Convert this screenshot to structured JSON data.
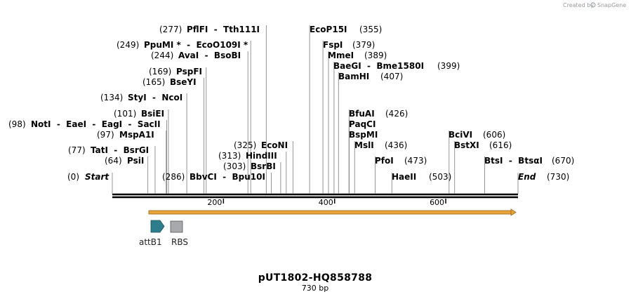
{
  "watermark": "Created by",
  "brand": "SnapGene",
  "title": "pUT1802-HQ858788",
  "length_label": "730 bp",
  "map": {
    "start_bp": 0,
    "end_bp": 730,
    "ticks": [
      200,
      400,
      600
    ]
  },
  "colors": {
    "feature_arrow": "#e8a33a",
    "attB1": "#2e7d8c",
    "RBS": "#a7a9ac"
  },
  "sites": [
    {
      "label": "Start",
      "pos": "(0)",
      "bp": 0,
      "italic": true
    },
    {
      "label": "PsiI",
      "pos": "(64)",
      "bp": 64
    },
    {
      "label": "TatI  -  BsrGI",
      "pos": "(77)",
      "bp": 77
    },
    {
      "label": "MspA1I",
      "pos": "(97)",
      "bp": 97
    },
    {
      "label": "NotI  -  EaeI  -  EagI  -  SacII",
      "pos": "(98)",
      "bp": 98
    },
    {
      "label": "BsiEI",
      "pos": "(101)",
      "bp": 101
    },
    {
      "label": "StyI  -  NcoI",
      "pos": "(134)",
      "bp": 134
    },
    {
      "label": "BseYI",
      "pos": "(165)",
      "bp": 165
    },
    {
      "label": "PspFI",
      "pos": "(169)",
      "bp": 169
    },
    {
      "label": "AvaI  -  BsoBI",
      "pos": "(244)",
      "bp": 244
    },
    {
      "label": "PpuMI *  -  EcoO109I *",
      "pos": "(249)",
      "bp": 249
    },
    {
      "label": "PflFI  -  Tth111I",
      "pos": "(277)",
      "bp": 277
    },
    {
      "label": "BbvCI  -  Bpu10I",
      "pos": "(286)",
      "bp": 286
    },
    {
      "label": "BsrBI",
      "pos": "(303)",
      "bp": 303
    },
    {
      "label": "HindIII",
      "pos": "(313)",
      "bp": 313
    },
    {
      "label": "EcoNI",
      "pos": "(325)",
      "bp": 325
    },
    {
      "label": "EcoP15I",
      "pos": "(355)",
      "bp": 355
    },
    {
      "label": "FspI",
      "pos": "(379)",
      "bp": 379
    },
    {
      "label": "MmeI",
      "pos": "(389)",
      "bp": 389
    },
    {
      "label": "BaeGI  -  Bme1580I",
      "pos": "(399)",
      "bp": 399
    },
    {
      "label": "BamHI",
      "pos": "(407)",
      "bp": 407
    },
    {
      "label": "BfuAI",
      "pos": "(426)",
      "bp": 426
    },
    {
      "label": "PaqCI",
      "pos": "",
      "bp": 426
    },
    {
      "label": "BspMI",
      "pos": "",
      "bp": 426
    },
    {
      "label": "MslI",
      "pos": "(436)",
      "bp": 436
    },
    {
      "label": "PfoI",
      "pos": "(473)",
      "bp": 473
    },
    {
      "label": "HaeII",
      "pos": "(503)",
      "bp": 503
    },
    {
      "label": "BciVI",
      "pos": "(606)",
      "bp": 606
    },
    {
      "label": "BstXI",
      "pos": "(616)",
      "bp": 616
    },
    {
      "label": "BtsI  -  BtsαI",
      "pos": "(670)",
      "bp": 670
    },
    {
      "label": "End",
      "pos": "(730)",
      "bp": 730,
      "italic": true
    }
  ],
  "features": [
    {
      "name": "attB1",
      "type": "arrow"
    },
    {
      "name": "RBS",
      "type": "box"
    }
  ]
}
